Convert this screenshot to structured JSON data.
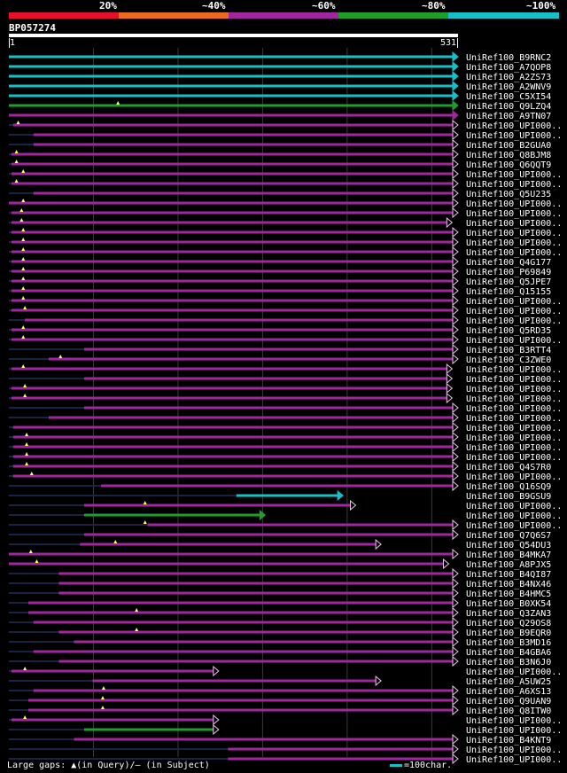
{
  "legend": {
    "labels": [
      "20%",
      "~40%",
      "~60%",
      "~80%",
      "~100%"
    ],
    "colors": [
      "#e6102c",
      "#ec6a1e",
      "#a0279e",
      "#1f9e2d",
      "#19bfc7"
    ]
  },
  "query": {
    "id": "BP057274",
    "start": "1",
    "end": "531",
    "length": 531
  },
  "footer": {
    "gaps_text": "Large gaps: ▲(in Query)/― (in Subject)",
    "scale_text": "=100char."
  },
  "chart_data": {
    "type": "alignment-overview",
    "query_length": 531,
    "hits": [
      {
        "id": "UniRef100_B9RNC2",
        "start": 1,
        "end": 531,
        "color": "#19bfc7",
        "arrow": "filled"
      },
      {
        "id": "UniRef100_A7QOP8",
        "start": 1,
        "end": 531,
        "color": "#19bfc7",
        "arrow": "filled"
      },
      {
        "id": "UniRef100_A2ZS73",
        "start": 1,
        "end": 531,
        "color": "#19bfc7",
        "arrow": "filled"
      },
      {
        "id": "UniRef100_A2WNV9",
        "start": 1,
        "end": 531,
        "color": "#19bfc7",
        "arrow": "filled"
      },
      {
        "id": "UniRef100_C5XI54",
        "start": 1,
        "end": 531,
        "color": "#19bfc7",
        "arrow": "filled"
      },
      {
        "id": "UniRef100_Q9LZQ4",
        "start": 1,
        "end": 531,
        "color": "#1f9e2d",
        "arrow": "filled",
        "gap": 130
      },
      {
        "id": "UniRef100_A9TN07",
        "start": 1,
        "end": 531,
        "color": "#a0279e",
        "arrow": "filled"
      },
      {
        "id": "UniRef100_UPI000..",
        "start": 6,
        "end": 531,
        "color": "#a0279e",
        "arrow": "open",
        "gap": 12
      },
      {
        "id": "UniRef100_UPI000..",
        "start": 30,
        "end": 531,
        "color": "#a0279e",
        "arrow": "open"
      },
      {
        "id": "UniRef100_B2GUA0",
        "start": 30,
        "end": 531,
        "color": "#a0279e",
        "arrow": "open"
      },
      {
        "id": "UniRef100_Q8BJM8",
        "start": 4,
        "end": 531,
        "color": "#a0279e",
        "arrow": "open",
        "gap": 10
      },
      {
        "id": "UniRef100_Q6QQT9",
        "start": 4,
        "end": 531,
        "color": "#a0279e",
        "arrow": "open",
        "gap": 10
      },
      {
        "id": "UniRef100_UPI000..",
        "start": 4,
        "end": 531,
        "color": "#a0279e",
        "arrow": "open",
        "gap": 18
      },
      {
        "id": "UniRef100_UPI000..",
        "start": 4,
        "end": 531,
        "color": "#a0279e",
        "arrow": "open",
        "gap": 10
      },
      {
        "id": "UniRef100_Q5U235",
        "start": 30,
        "end": 531,
        "color": "#a0279e",
        "arrow": "open"
      },
      {
        "id": "UniRef100_UPI000..",
        "start": 1,
        "end": 531,
        "color": "#a0279e",
        "arrow": "open",
        "gap": 18
      },
      {
        "id": "UniRef100_UPI000..",
        "start": 4,
        "end": 531,
        "color": "#a0279e",
        "arrow": "open",
        "gap": 16
      },
      {
        "id": "UniRef100_UPI000..",
        "start": 4,
        "end": 524,
        "color": "#a0279e",
        "arrow": "open",
        "gap": 16
      },
      {
        "id": "UniRef100_UPI000..",
        "start": 4,
        "end": 531,
        "color": "#a0279e",
        "arrow": "open",
        "gap": 18
      },
      {
        "id": "UniRef100_UPI000..",
        "start": 4,
        "end": 531,
        "color": "#a0279e",
        "arrow": "open",
        "gap": 18
      },
      {
        "id": "UniRef100_UPI000..",
        "start": 4,
        "end": 531,
        "color": "#a0279e",
        "arrow": "open",
        "gap": 18
      },
      {
        "id": "UniRef100_Q4G177",
        "start": 4,
        "end": 531,
        "color": "#a0279e",
        "arrow": "open",
        "gap": 18
      },
      {
        "id": "UniRef100_P69849",
        "start": 4,
        "end": 531,
        "color": "#a0279e",
        "arrow": "open",
        "gap": 18
      },
      {
        "id": "UniRef100_Q5JPE7",
        "start": 4,
        "end": 531,
        "color": "#a0279e",
        "arrow": "open",
        "gap": 18
      },
      {
        "id": "UniRef100_Q15155",
        "start": 4,
        "end": 531,
        "color": "#a0279e",
        "arrow": "open",
        "gap": 18
      },
      {
        "id": "UniRef100_UPI000..",
        "start": 4,
        "end": 531,
        "color": "#a0279e",
        "arrow": "open",
        "gap": 18
      },
      {
        "id": "UniRef100_UPI000..",
        "start": 4,
        "end": 531,
        "color": "#a0279e",
        "arrow": "open",
        "gap": 20
      },
      {
        "id": "UniRef100_UPI000..",
        "start": 20,
        "end": 531,
        "color": "#a0279e",
        "arrow": "open"
      },
      {
        "id": "UniRef100_Q5RD35",
        "start": 4,
        "end": 531,
        "color": "#a0279e",
        "arrow": "open",
        "gap": 18
      },
      {
        "id": "UniRef100_UPI000..",
        "start": 4,
        "end": 531,
        "color": "#a0279e",
        "arrow": "open",
        "gap": 18
      },
      {
        "id": "UniRef100_B3RTT4",
        "start": 90,
        "end": 531,
        "color": "#a0279e",
        "arrow": "open"
      },
      {
        "id": "UniRef100_C3ZWE0",
        "start": 48,
        "end": 531,
        "color": "#a0279e",
        "arrow": "open",
        "gap": 62
      },
      {
        "id": "UniRef100_UPI000..",
        "start": 4,
        "end": 524,
        "color": "#a0279e",
        "arrow": "open",
        "gap": 18
      },
      {
        "id": "UniRef100_UPI000..",
        "start": 90,
        "end": 524,
        "color": "#a0279e",
        "arrow": "open"
      },
      {
        "id": "UniRef100_UPI000..",
        "start": 4,
        "end": 524,
        "color": "#a0279e",
        "arrow": "open",
        "gap": 20
      },
      {
        "id": "UniRef100_UPI000..",
        "start": 4,
        "end": 524,
        "color": "#a0279e",
        "arrow": "open",
        "gap": 20
      },
      {
        "id": "UniRef100_UPI000..",
        "start": 90,
        "end": 531,
        "color": "#a0279e",
        "arrow": "open"
      },
      {
        "id": "UniRef100_UPI000..",
        "start": 48,
        "end": 531,
        "color": "#a0279e",
        "arrow": "open"
      },
      {
        "id": "UniRef100_UPI000..",
        "start": 6,
        "end": 531,
        "color": "#a0279e",
        "arrow": "open"
      },
      {
        "id": "UniRef100_UPI000..",
        "start": 6,
        "end": 531,
        "color": "#a0279e",
        "arrow": "open",
        "gap": 22
      },
      {
        "id": "UniRef100_UPI000..",
        "start": 6,
        "end": 531,
        "color": "#a0279e",
        "arrow": "open",
        "gap": 22
      },
      {
        "id": "UniRef100_UPI000..",
        "start": 6,
        "end": 531,
        "color": "#a0279e",
        "arrow": "open",
        "gap": 22
      },
      {
        "id": "UniRef100_Q4S7R0",
        "start": 6,
        "end": 531,
        "color": "#a0279e",
        "arrow": "open",
        "gap": 22
      },
      {
        "id": "UniRef100_UPI000..",
        "start": 6,
        "end": 531,
        "color": "#a0279e",
        "arrow": "open",
        "gap": 28
      },
      {
        "id": "UniRef100_Q16SQ9",
        "start": 110,
        "end": 531,
        "color": "#a0279e",
        "arrow": "open"
      },
      {
        "id": "UniRef100_B9GSU9",
        "start": 270,
        "end": 395,
        "color": "#19bfc7",
        "arrow": "filled"
      },
      {
        "id": "UniRef100_UPI000..",
        "start": 90,
        "end": 410,
        "color": "#a0279e",
        "arrow": "open",
        "gap": 162
      },
      {
        "id": "UniRef100_UPI000..",
        "start": 90,
        "end": 303,
        "color": "#1f9e2d",
        "arrow": "filled"
      },
      {
        "id": "UniRef100_UPI000..",
        "start": 165,
        "end": 531,
        "color": "#a0279e",
        "arrow": "open",
        "gap": 162
      },
      {
        "id": "UniRef100_Q7Q6S7",
        "start": 90,
        "end": 531,
        "color": "#a0279e",
        "arrow": "open"
      },
      {
        "id": "UniRef100_Q54DU3",
        "start": 85,
        "end": 440,
        "color": "#a0279e",
        "arrow": "open",
        "gap": 127
      },
      {
        "id": "UniRef100_B4MKA7",
        "start": 1,
        "end": 531,
        "color": "#a0279e",
        "arrow": "open",
        "gap": 27
      },
      {
        "id": "UniRef100_A8PJX5",
        "start": 1,
        "end": 520,
        "color": "#a0279e",
        "arrow": "open",
        "gap": 34
      },
      {
        "id": "UniRef100_B4QI87",
        "start": 60,
        "end": 531,
        "color": "#a0279e",
        "arrow": "open"
      },
      {
        "id": "UniRef100_B4NX46",
        "start": 60,
        "end": 531,
        "color": "#a0279e",
        "arrow": "open"
      },
      {
        "id": "UniRef100_B4HMC5",
        "start": 60,
        "end": 531,
        "color": "#a0279e",
        "arrow": "open"
      },
      {
        "id": "UniRef100_B0XK54",
        "start": 24,
        "end": 531,
        "color": "#a0279e",
        "arrow": "open"
      },
      {
        "id": "UniRef100_Q3ZAN3",
        "start": 24,
        "end": 531,
        "color": "#a0279e",
        "arrow": "open",
        "gap": 152
      },
      {
        "id": "UniRef100_Q29OS8",
        "start": 30,
        "end": 531,
        "color": "#a0279e",
        "arrow": "open"
      },
      {
        "id": "UniRef100_B9EQR0",
        "start": 60,
        "end": 531,
        "color": "#a0279e",
        "arrow": "open",
        "gap": 152
      },
      {
        "id": "UniRef100_B3MD16",
        "start": 78,
        "end": 531,
        "color": "#a0279e",
        "arrow": "open"
      },
      {
        "id": "UniRef100_B4GBA6",
        "start": 30,
        "end": 531,
        "color": "#a0279e",
        "arrow": "open"
      },
      {
        "id": "UniRef100_B3N6J0",
        "start": 60,
        "end": 531,
        "color": "#a0279e",
        "arrow": "open"
      },
      {
        "id": "UniRef100_UPI000..",
        "start": 4,
        "end": 248,
        "color": "#a0279e",
        "arrow": "open",
        "gap": 20
      },
      {
        "id": "UniRef100_A5UW25",
        "start": 100,
        "end": 440,
        "color": "#a0279e",
        "arrow": "open"
      },
      {
        "id": "UniRef100_A6XS13",
        "start": 30,
        "end": 531,
        "color": "#a0279e",
        "arrow": "open",
        "gap": 113
      },
      {
        "id": "UniRef100_Q9UAN9",
        "start": 24,
        "end": 531,
        "color": "#a0279e",
        "arrow": "open",
        "gap": 112
      },
      {
        "id": "UniRef100_Q8ITW0",
        "start": 24,
        "end": 531,
        "color": "#a0279e",
        "arrow": "open",
        "gap": 112
      },
      {
        "id": "UniRef100_UPI000..",
        "start": 4,
        "end": 248,
        "color": "#a0279e",
        "arrow": "open",
        "gap": 20
      },
      {
        "id": "UniRef100_UPI000..",
        "start": 90,
        "end": 248,
        "color": "#1f9e2d",
        "arrow": "open"
      },
      {
        "id": "UniRef100_B4KNT9",
        "start": 78,
        "end": 531,
        "color": "#a0279e",
        "arrow": "open"
      },
      {
        "id": "UniRef100_UPI000..",
        "start": 260,
        "end": 531,
        "color": "#a0279e",
        "arrow": "open"
      },
      {
        "id": "UniRef100_UPI000..",
        "start": 260,
        "end": 531,
        "color": "#a0279e",
        "arrow": "open"
      }
    ]
  }
}
